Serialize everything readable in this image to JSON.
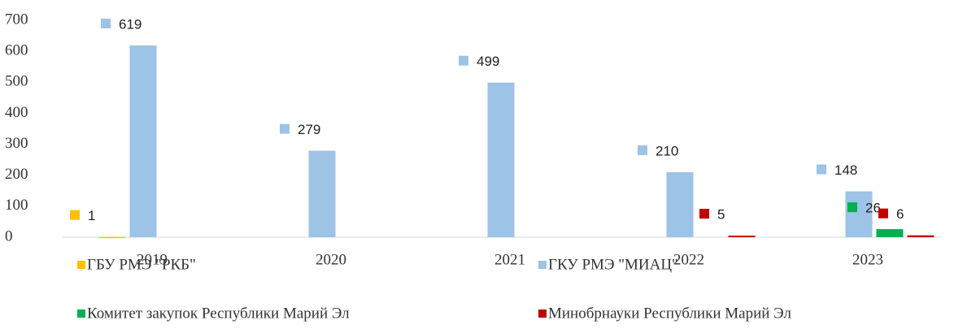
{
  "chart_data": {
    "type": "bar",
    "categories": [
      "2019",
      "2020",
      "2021",
      "2022",
      "2023"
    ],
    "series": [
      {
        "name": "ГБУ РМЭ \"РКБ\"",
        "color": "#ffc000",
        "values": [
          1,
          null,
          null,
          null,
          null
        ]
      },
      {
        "name": "ГКУ РМЭ \"МИАЦ\"",
        "color": "#9dc3e6",
        "values": [
          619,
          279,
          499,
          210,
          148
        ]
      },
      {
        "name": "Комитет закупок Республики Марий Эл",
        "color": "#00b050",
        "values": [
          null,
          null,
          null,
          null,
          26
        ]
      },
      {
        "name": "Минобрнауки Республики Марий Эл",
        "color": "#c00000",
        "values": [
          null,
          null,
          null,
          5,
          6
        ]
      }
    ],
    "ylim": [
      0,
      700
    ],
    "yticks": [
      0,
      100,
      200,
      300,
      400,
      500,
      600,
      700
    ],
    "grid": false
  }
}
